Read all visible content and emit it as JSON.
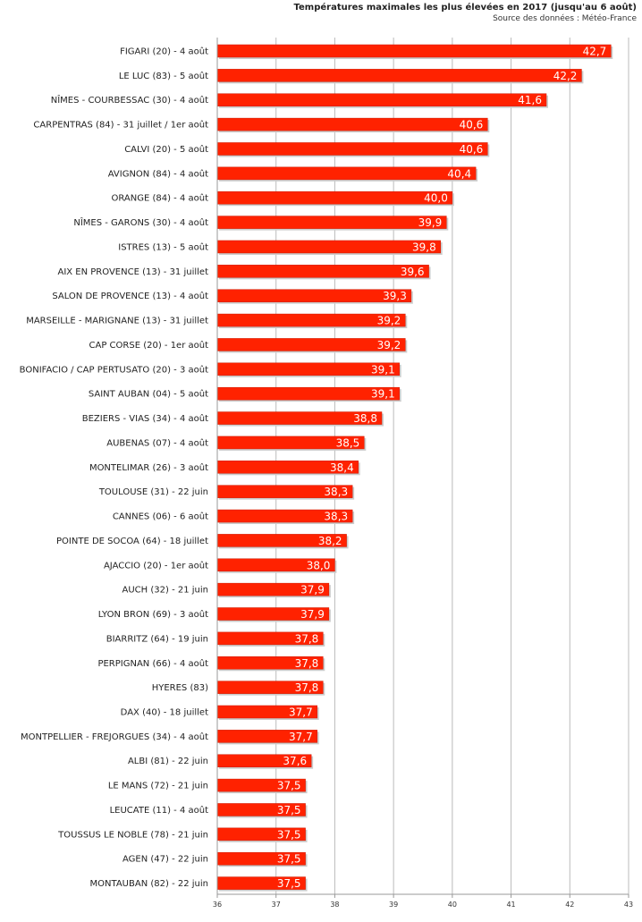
{
  "header": {
    "title": "Températures maximales les plus élevées en 2017 (jusqu'au 6 août)",
    "source": "Source des données : Météo-France"
  },
  "colors": {
    "bar": "#ff2200",
    "bar_border": "#cc1a00",
    "grid": "#bbbbbb",
    "axis": "#999999"
  },
  "chart_data": {
    "type": "bar",
    "orientation": "horizontal",
    "title": "Températures maximales les plus élevées en 2017 (jusqu'au 6 août)",
    "xlabel": "",
    "ylabel": "",
    "xlim": [
      36,
      43
    ],
    "xticks": [
      36,
      37,
      38,
      39,
      40,
      41,
      42,
      43
    ],
    "grid": true,
    "categories": [
      "FIGARI (20) - 4 août",
      "LE LUC (83) - 5 août",
      "NÎMES - COURBESSAC (30) - 4 août",
      "CARPENTRAS (84) - 31 juillet / 1er août",
      "CALVI (20) - 5 août",
      "AVIGNON (84) - 4 août",
      "ORANGE (84) - 4 août",
      "NÎMES - GARONS (30) - 4 août",
      "ISTRES (13) - 5 août",
      "AIX EN PROVENCE (13) - 31 juillet",
      "SALON DE PROVENCE (13) - 4 août",
      "MARSEILLE - MARIGNANE (13) - 31 juillet",
      "CAP CORSE (20) - 1er août",
      "BONIFACIO / CAP PERTUSATO (20) - 3 août",
      "SAINT AUBAN (04) - 5 août",
      "BEZIERS - VIAS (34) - 4 août",
      "AUBENAS (07) - 4 août",
      "MONTELIMAR (26) - 3 août",
      "TOULOUSE (31) - 22 juin",
      "CANNES (06) - 6 août",
      "POINTE DE SOCOA (64) - 18 juillet",
      "AJACCIO (20) - 1er août",
      "AUCH (32) - 21 juin",
      "LYON BRON (69) - 3 août",
      "BIARRITZ (64) - 19 juin",
      "PERPIGNAN (66) - 4 août",
      "HYERES (83)",
      "DAX (40) - 18 juillet",
      "MONTPELLIER - FREJORGUES (34) - 4 août",
      "ALBI (81) - 22 juin",
      "LE MANS (72) - 21 juin",
      "LEUCATE (11) - 4 août",
      "TOUSSUS LE NOBLE (78) - 21 juin",
      "AGEN (47) - 22 juin",
      "MONTAUBAN (82) - 22 juin"
    ],
    "values": [
      42.7,
      42.2,
      41.6,
      40.6,
      40.6,
      40.4,
      40.0,
      39.9,
      39.8,
      39.6,
      39.3,
      39.2,
      39.2,
      39.1,
      39.1,
      38.8,
      38.5,
      38.4,
      38.3,
      38.3,
      38.2,
      38.0,
      37.9,
      37.9,
      37.8,
      37.8,
      37.8,
      37.7,
      37.7,
      37.6,
      37.5,
      37.5,
      37.5,
      37.5,
      37.5
    ],
    "value_labels": [
      "42,7",
      "42,2",
      "41,6",
      "40,6",
      "40,6",
      "40,4",
      "40,0",
      "39,9",
      "39,8",
      "39,6",
      "39,3",
      "39,2",
      "39,2",
      "39,1",
      "39,1",
      "38,8",
      "38,5",
      "38,4",
      "38,3",
      "38,3",
      "38,2",
      "38,0",
      "37,9",
      "37,9",
      "37,8",
      "37,8",
      "37,8",
      "37,7",
      "37,7",
      "37,6",
      "37,5",
      "37,5",
      "37,5",
      "37,5",
      "37,5"
    ],
    "tick_labels": [
      "36",
      "37",
      "38",
      "39",
      "40",
      "41",
      "42",
      "43"
    ]
  }
}
